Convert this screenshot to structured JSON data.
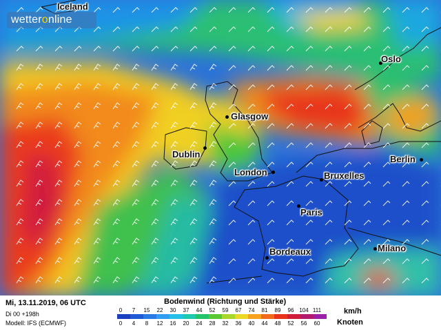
{
  "brand": {
    "logo_text_start": "wetter",
    "logo_text_accent": "o",
    "logo_text_end": "nline"
  },
  "cities": [
    {
      "name": "Iceland",
      "dot": false
    },
    {
      "name": "Oslo",
      "dot": true
    },
    {
      "name": "Glasgow",
      "dot": true
    },
    {
      "name": "Dublin",
      "dot": true
    },
    {
      "name": "London",
      "dot": true
    },
    {
      "name": "Berlin",
      "dot": true
    },
    {
      "name": "Bruxelles",
      "dot": true
    },
    {
      "name": "Paris",
      "dot": true
    },
    {
      "name": "Bordeaux",
      "dot": true
    },
    {
      "name": "Milano",
      "dot": true
    }
  ],
  "footer": {
    "date": "Mi, 13.11.2019, 06 UTC",
    "run": "Di 00 +198h",
    "model": "Modell: IFS (ECMWF)"
  },
  "legend": {
    "title": "Bodenwind (Richtung und Stärke)",
    "kmh_label": "km/h",
    "knots_label": "Knoten",
    "kmh_ticks": [
      "0",
      "7",
      "15",
      "22",
      "30",
      "37",
      "44",
      "52",
      "59",
      "67",
      "74",
      "81",
      "89",
      "96",
      "104",
      "111"
    ],
    "knots_ticks": [
      "0",
      "4",
      "8",
      "12",
      "16",
      "20",
      "24",
      "28",
      "32",
      "36",
      "40",
      "44",
      "48",
      "52",
      "56",
      "60"
    ],
    "colors": [
      "#1a3fbf",
      "#1f5ad6",
      "#2a7ae6",
      "#2f9ef0",
      "#25c0e8",
      "#1ec9b0",
      "#22c46a",
      "#59c832",
      "#a8d62a",
      "#ecd824",
      "#f7a11d",
      "#f16a1b",
      "#e8321a",
      "#cf1d3a",
      "#b31a6e",
      "#9c20a8"
    ]
  }
}
